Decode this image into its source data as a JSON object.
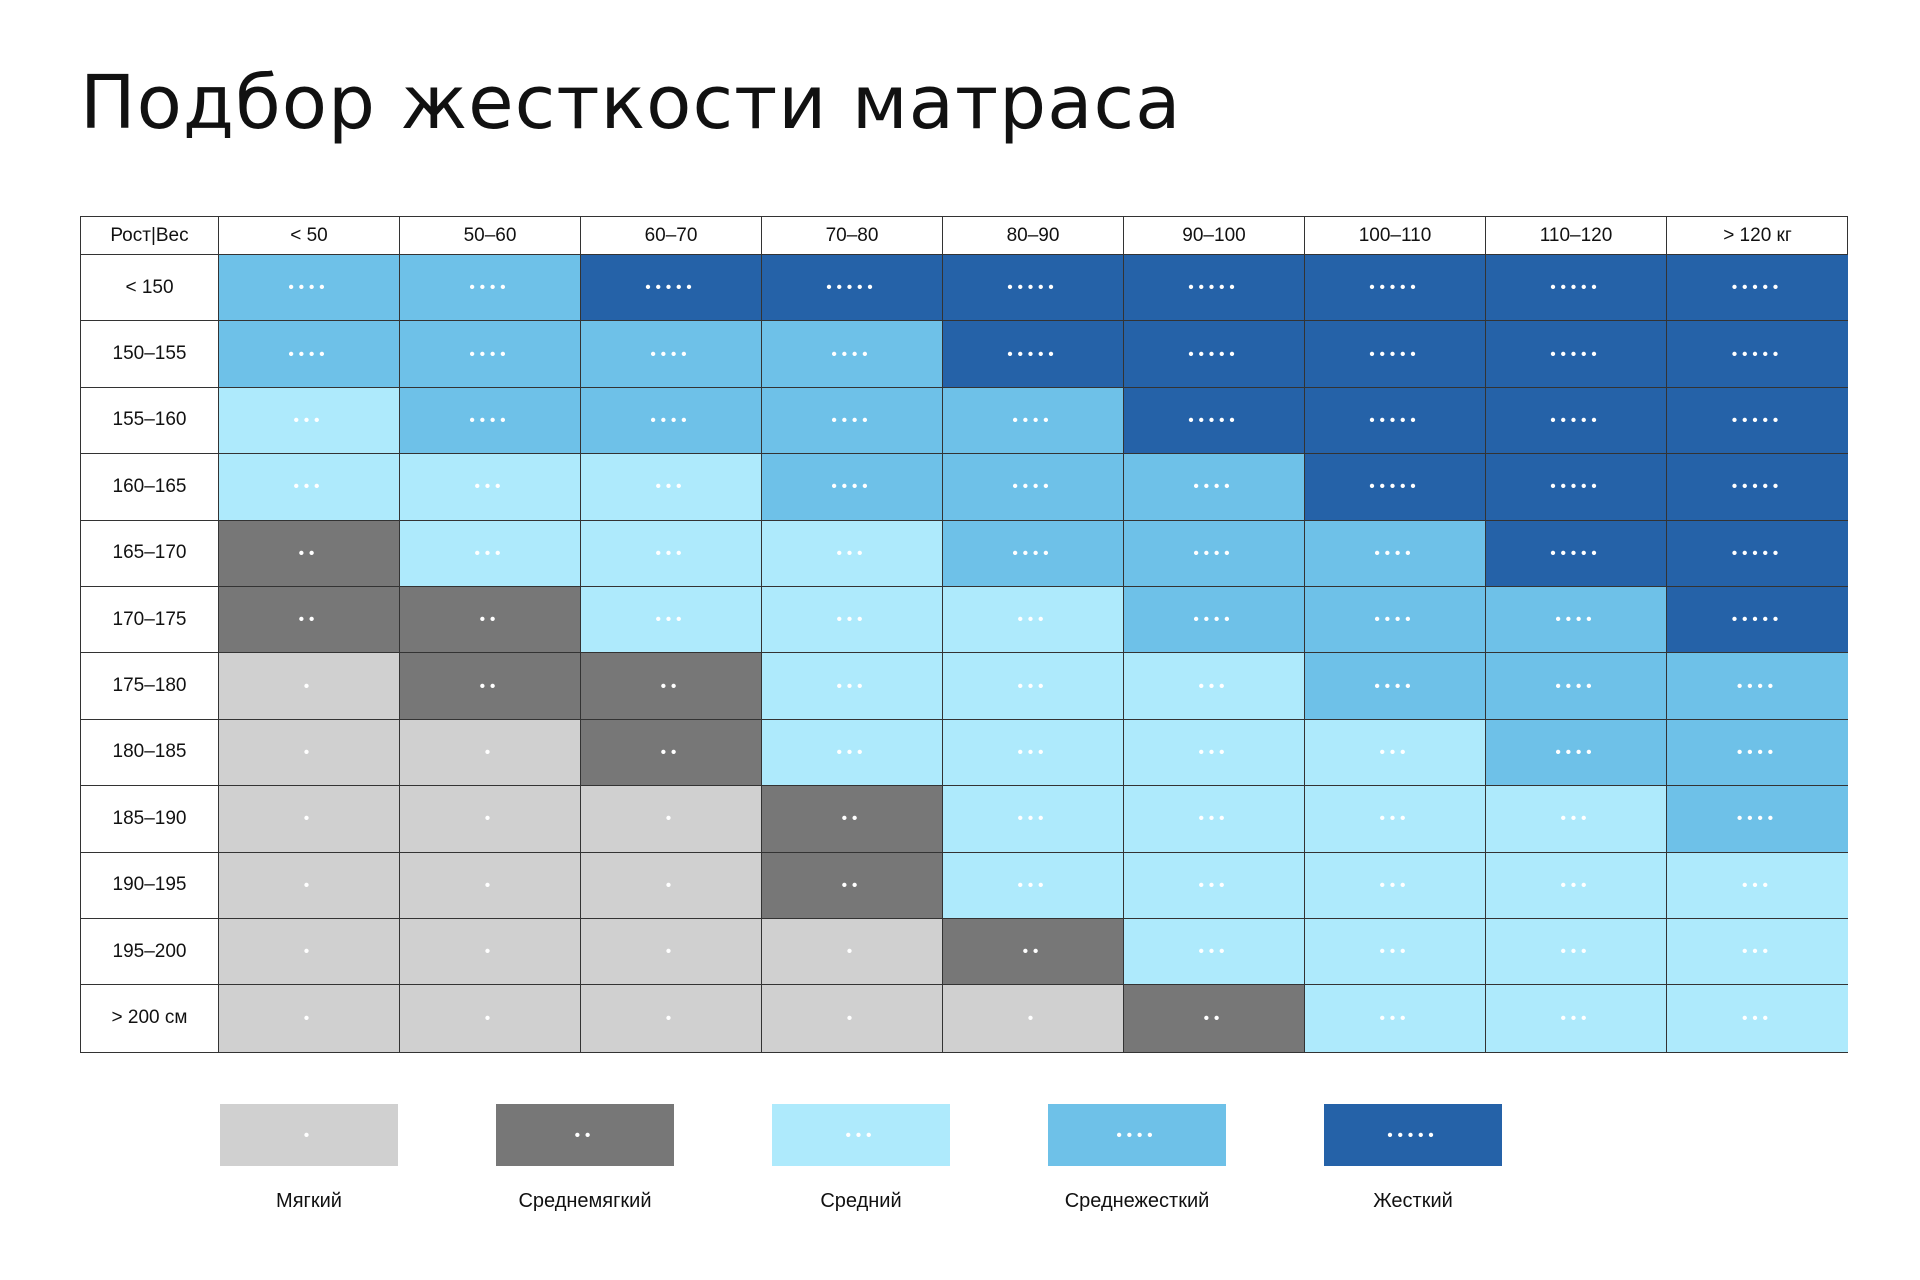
{
  "title": "Подбор жесткости матраса",
  "colors": {
    "1": "#d0d0d0",
    "2": "#777777",
    "3": "#aeeafc",
    "4": "#6ec1e8",
    "5": "#2562a8"
  },
  "dot_glyph": "•",
  "chart_data": {
    "type": "heatmap",
    "corner_label": "Рост|Вес",
    "columns": [
      "< 50",
      "50–60",
      "60–70",
      "70–80",
      "80–90",
      "90–100",
      "100–110",
      "110–120",
      "> 120 кг"
    ],
    "rows": [
      "< 150",
      "150–155",
      "155–160",
      "160–165",
      "165–170",
      "170–175",
      "175–180",
      "180–185",
      "185–190",
      "190–195",
      "195–200",
      "> 200 см"
    ],
    "values": [
      [
        4,
        4,
        5,
        5,
        5,
        5,
        5,
        5,
        5
      ],
      [
        4,
        4,
        4,
        4,
        5,
        5,
        5,
        5,
        5
      ],
      [
        3,
        4,
        4,
        4,
        4,
        5,
        5,
        5,
        5
      ],
      [
        3,
        3,
        3,
        4,
        4,
        4,
        5,
        5,
        5
      ],
      [
        2,
        3,
        3,
        3,
        4,
        4,
        4,
        5,
        5
      ],
      [
        2,
        2,
        3,
        3,
        3,
        4,
        4,
        4,
        5
      ],
      [
        1,
        2,
        2,
        3,
        3,
        3,
        4,
        4,
        4
      ],
      [
        1,
        1,
        2,
        3,
        3,
        3,
        3,
        4,
        4
      ],
      [
        1,
        1,
        1,
        2,
        3,
        3,
        3,
        3,
        4
      ],
      [
        1,
        1,
        1,
        2,
        3,
        3,
        3,
        3,
        3
      ],
      [
        1,
        1,
        1,
        1,
        2,
        3,
        3,
        3,
        3
      ],
      [
        1,
        1,
        1,
        1,
        1,
        2,
        3,
        3,
        3
      ]
    ],
    "legend": [
      {
        "level": 1,
        "label": "Мягкий"
      },
      {
        "level": 2,
        "label": "Среднемягкий"
      },
      {
        "level": 3,
        "label": "Средний"
      },
      {
        "level": 4,
        "label": "Среднежесткий"
      },
      {
        "level": 5,
        "label": "Жесткий"
      }
    ]
  }
}
